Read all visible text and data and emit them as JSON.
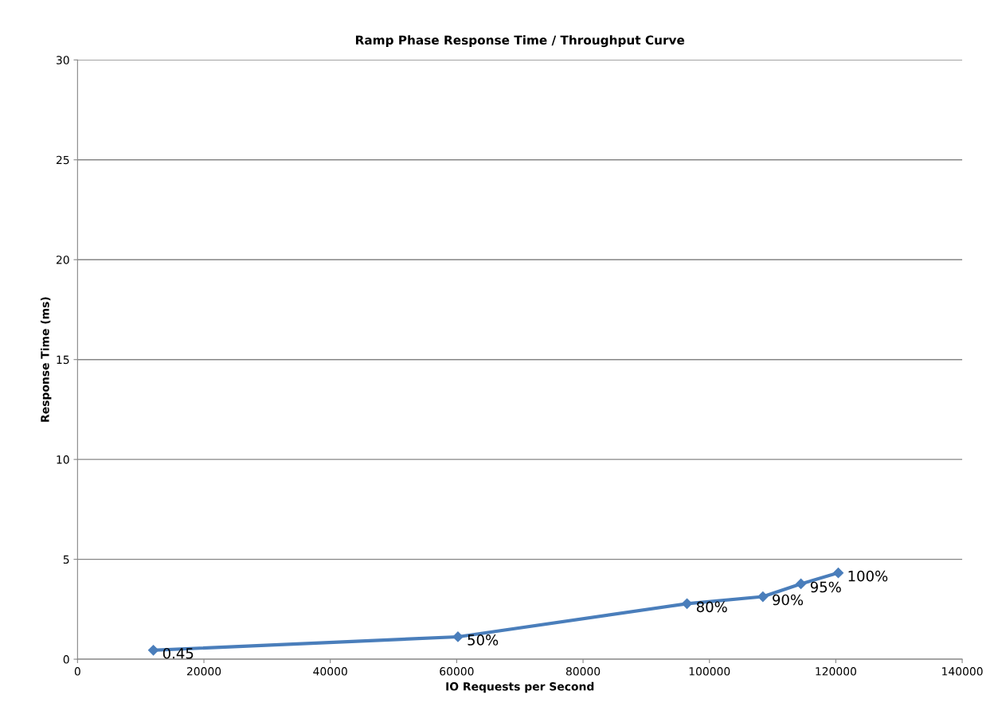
{
  "chart_data": {
    "type": "line",
    "title": "Ramp Phase Response Time / Throughput Curve",
    "xlabel": "IO Requests per Second",
    "ylabel": "Response Time (ms)",
    "x": [
      12000,
      60200,
      96450,
      108460,
      114480,
      120390
    ],
    "series": [
      {
        "color": "#4a7ebb",
        "values": [
          0.45,
          1.12,
          2.78,
          3.13,
          3.77,
          4.32
        ]
      }
    ],
    "annotations": [
      {
        "text": "0.45",
        "x": 12000,
        "y": 0.45
      },
      {
        "text": "50%",
        "x": 60200,
        "y": 1.12
      },
      {
        "text": "80%",
        "x": 96450,
        "y": 2.78
      },
      {
        "text": "90%",
        "x": 108460,
        "y": 3.13
      },
      {
        "text": "95%",
        "x": 114480,
        "y": 3.77
      },
      {
        "text": "100%",
        "x": 120390,
        "y": 4.32
      }
    ],
    "xlim": [
      0,
      140000
    ],
    "xticks": [
      0,
      20000,
      40000,
      60000,
      80000,
      100000,
      120000,
      140000
    ],
    "ylim": [
      0,
      30
    ],
    "yticks": [
      0,
      5,
      10,
      15,
      20,
      25,
      30
    ],
    "grid": "y",
    "marker": "diamond",
    "line_style": "solid"
  }
}
